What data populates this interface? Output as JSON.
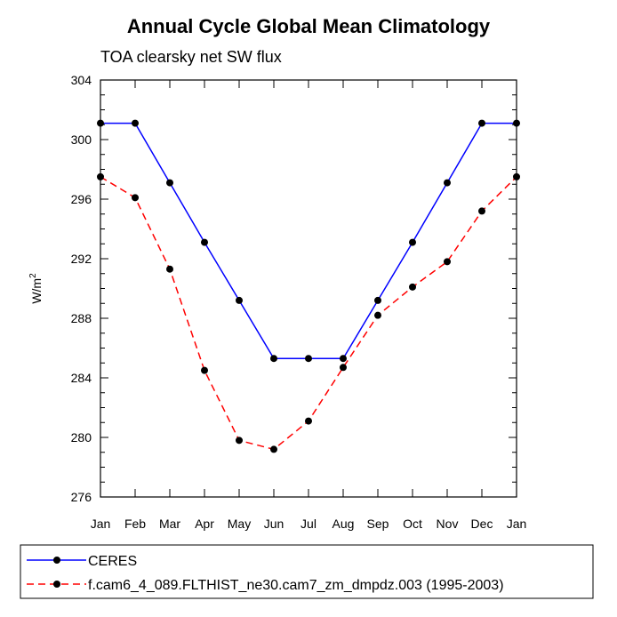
{
  "chart_data": {
    "type": "line",
    "title": "Annual Cycle Global Mean Climatology",
    "subtitle": "TOA clearsky net SW flux",
    "ylabel": "W/m",
    "ylabel_superscript": "2",
    "xlabel": "",
    "categories": [
      "Jan",
      "Feb",
      "Mar",
      "Apr",
      "May",
      "Jun",
      "Jul",
      "Aug",
      "Sep",
      "Oct",
      "Nov",
      "Dec",
      "Jan"
    ],
    "ylim": [
      276,
      304
    ],
    "yticks": [
      276,
      280,
      284,
      288,
      292,
      296,
      300,
      304
    ],
    "series": [
      {
        "name": "CERES",
        "color": "#0000ff",
        "dash": false,
        "values": [
          301.1,
          301.1,
          297.1,
          293.1,
          289.2,
          285.3,
          285.3,
          285.3,
          289.2,
          293.1,
          297.1,
          301.1,
          301.1
        ]
      },
      {
        "name": "f.cam6_4_089.FLTHIST_ne30.cam7_zm_dmpdz.003 (1995-2003)",
        "color": "#ff0000",
        "dash": true,
        "values": [
          297.5,
          296.1,
          291.3,
          284.5,
          279.8,
          279.2,
          281.1,
          284.7,
          288.2,
          290.1,
          291.8,
          295.2,
          297.5
        ]
      }
    ],
    "legend_position": "bottom"
  }
}
